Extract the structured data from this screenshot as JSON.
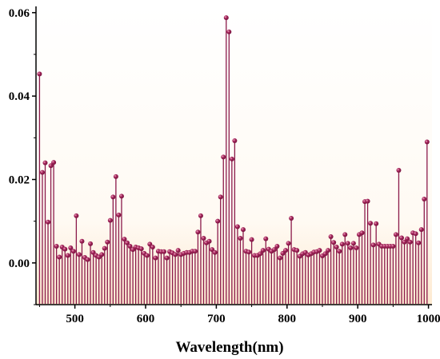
{
  "chart_data": {
    "type": "stem",
    "title": "",
    "xlabel": "Wavelength(nm)",
    "ylabel": "",
    "xlim": [
      445,
      1005
    ],
    "ylim": [
      -0.01,
      0.0615
    ],
    "x_ticks": [
      500,
      600,
      700,
      800,
      900,
      1000
    ],
    "x_tick_labels": [
      "500",
      "600",
      "700",
      "800",
      "900",
      "1000"
    ],
    "y_ticks": [
      0.0,
      0.02,
      0.04,
      0.06
    ],
    "y_tick_labels": [
      "0.00",
      "0.02",
      "0.04",
      "0.06"
    ],
    "grid": false,
    "legend": "none",
    "colors": {
      "stem": "#8b1a4a",
      "marker": "#7a1540",
      "plot_background_top": "#ffffff",
      "plot_background_bottom": "#fde9d0"
    },
    "x": [
      450,
      454,
      458,
      462,
      466,
      470,
      474,
      478,
      482,
      486,
      490,
      494,
      498,
      502,
      506,
      510,
      514,
      518,
      522,
      526,
      530,
      534,
      538,
      542,
      546,
      550,
      554,
      558,
      562,
      566,
      570,
      574,
      578,
      582,
      586,
      590,
      594,
      598,
      602,
      606,
      610,
      614,
      618,
      622,
      626,
      630,
      634,
      638,
      642,
      646,
      650,
      654,
      658,
      662,
      666,
      670,
      674,
      678,
      682,
      686,
      690,
      694,
      698,
      702,
      706,
      710,
      714,
      718,
      722,
      726,
      730,
      734,
      738,
      742,
      746,
      750,
      754,
      758,
      762,
      766,
      770,
      774,
      778,
      782,
      786,
      790,
      794,
      798,
      802,
      806,
      810,
      814,
      818,
      822,
      826,
      830,
      834,
      838,
      842,
      846,
      850,
      854,
      858,
      862,
      866,
      870,
      874,
      878,
      882,
      886,
      890,
      894,
      898,
      902,
      906,
      910,
      914,
      918,
      922,
      926,
      930,
      934,
      938,
      942,
      946,
      950,
      954,
      958,
      962,
      966,
      970,
      974,
      978,
      982,
      986,
      990,
      994,
      998
    ],
    "y": [
      0.0453,
      0.0217,
      0.024,
      0.0098,
      0.0233,
      0.0241,
      0.004,
      0.0014,
      0.0038,
      0.0033,
      0.0018,
      0.0036,
      0.0028,
      0.0113,
      0.002,
      0.0052,
      0.0013,
      0.0008,
      0.0046,
      0.0025,
      0.0018,
      0.0014,
      0.002,
      0.0035,
      0.005,
      0.0102,
      0.0158,
      0.0207,
      0.0115,
      0.016,
      0.0057,
      0.0048,
      0.004,
      0.0032,
      0.0038,
      0.0036,
      0.0034,
      0.0023,
      0.0018,
      0.0045,
      0.0038,
      0.0012,
      0.0028,
      0.0027,
      0.0027,
      0.0012,
      0.0027,
      0.0024,
      0.002,
      0.003,
      0.002,
      0.0023,
      0.0025,
      0.0025,
      0.0028,
      0.0028,
      0.0074,
      0.0113,
      0.0059,
      0.0048,
      0.0052,
      0.0032,
      0.0025,
      0.01,
      0.0158,
      0.0254,
      0.0588,
      0.0554,
      0.0249,
      0.0293,
      0.0087,
      0.0059,
      0.008,
      0.0028,
      0.0026,
      0.0056,
      0.0018,
      0.0018,
      0.0022,
      0.003,
      0.0058,
      0.0033,
      0.0028,
      0.0032,
      0.004,
      0.0012,
      0.0023,
      0.003,
      0.0047,
      0.0107,
      0.0032,
      0.003,
      0.0016,
      0.0022,
      0.0025,
      0.0019,
      0.0022,
      0.0026,
      0.0027,
      0.003,
      0.0017,
      0.0022,
      0.003,
      0.0063,
      0.0049,
      0.0038,
      0.0028,
      0.0045,
      0.0068,
      0.0047,
      0.0036,
      0.0047,
      0.0036,
      0.0068,
      0.0072,
      0.0147,
      0.0148,
      0.0095,
      0.0043,
      0.0094,
      0.0045,
      0.004,
      0.004,
      0.004,
      0.004,
      0.004,
      0.0068,
      0.0222,
      0.006,
      0.005,
      0.0058,
      0.005,
      0.0072,
      0.007,
      0.0048,
      0.008,
      0.0153,
      0.029
    ]
  }
}
